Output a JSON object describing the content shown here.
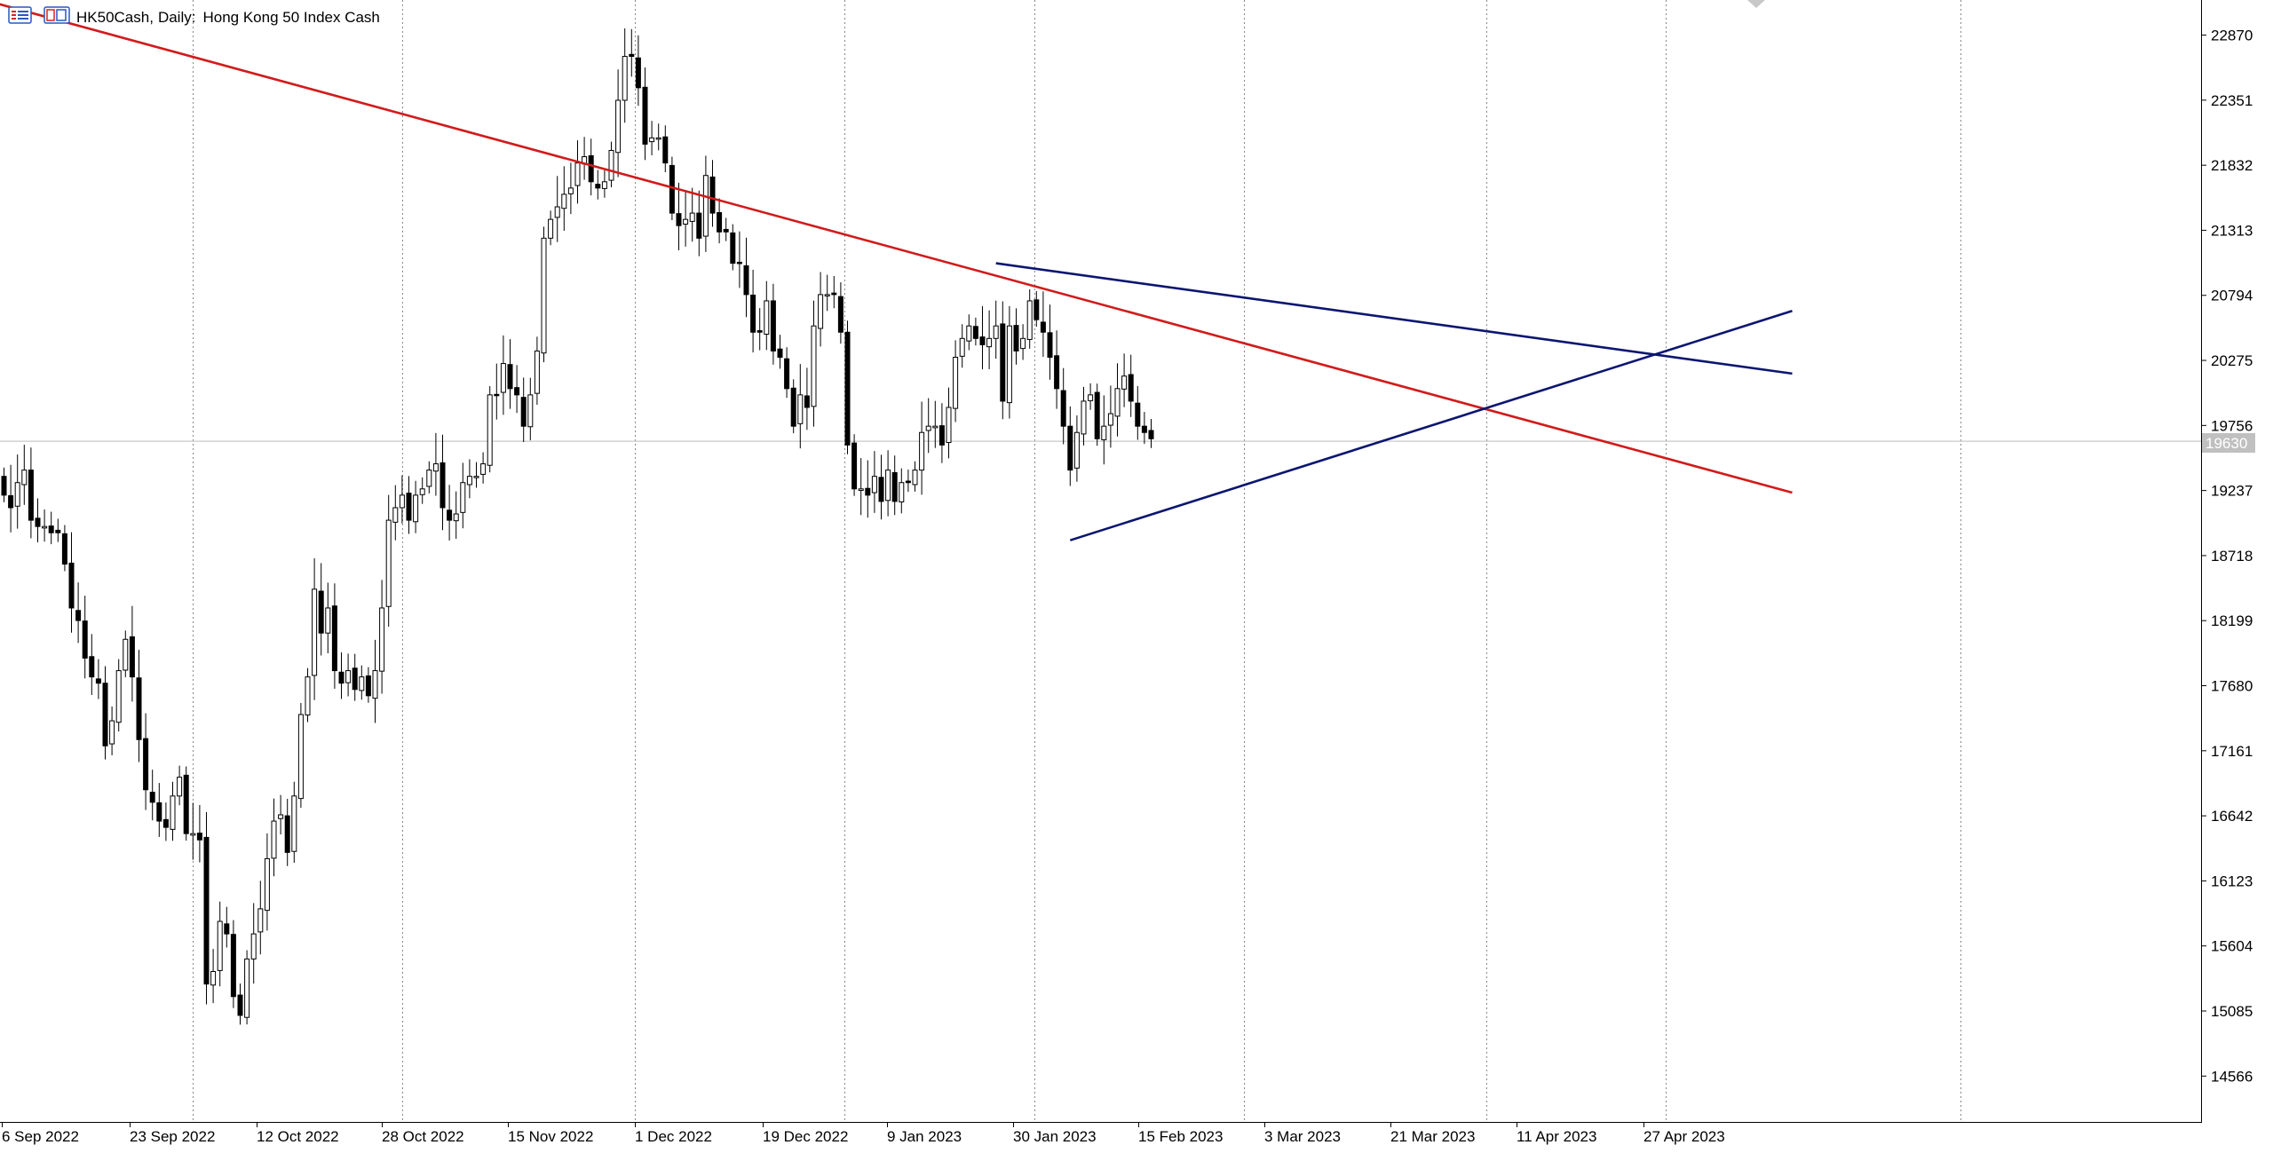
{
  "chart_header": {
    "symbol": "HK50Cash",
    "period": "Daily:",
    "description": "Hong Kong 50 Index Cash"
  },
  "colors": {
    "background": "#ffffff",
    "bull_fill": "#ffffff",
    "bear_fill": "#000000",
    "candle_outline": "#000000",
    "grid": "#888888",
    "red_trendline": "#d11b1b",
    "blue_trendline": "#0b1670",
    "price_line": "#c8c8c8",
    "price_tag_bg": "#c0c0c0",
    "price_tag_text": "#ffffff"
  },
  "current_price_label": "19630",
  "chart_data": {
    "type": "candlestick",
    "title": "HK50Cash, Daily: Hong Kong 50 Index Cash",
    "ylim": [
      14200,
      23150
    ],
    "y_ticks": [
      22870,
      22351,
      21832,
      21313,
      20794,
      20275,
      19756,
      19237,
      18718,
      18199,
      17680,
      17161,
      16642,
      16123,
      15604,
      15085,
      14566
    ],
    "x_labels": [
      "6 Sep 2022",
      "23 Sep 2022",
      "12 Oct 2022",
      "28 Oct 2022",
      "15 Nov 2022",
      "1 Dec 2022",
      "19 Dec 2022",
      "9 Jan 2023",
      "30 Jan 2023",
      "15 Feb 2023",
      "3 Mar 2023",
      "21 Mar 2023",
      "11 Apr 2023",
      "27 Apr 2023"
    ],
    "current_price": 19630,
    "closes": [
      19200,
      19100,
      19300,
      19400,
      19000,
      18950,
      18950,
      18900,
      18900,
      18650,
      18300,
      18200,
      17900,
      17750,
      17700,
      17200,
      17400,
      17800,
      18050,
      17750,
      17250,
      16850,
      16750,
      16600,
      16550,
      16800,
      16950,
      16500,
      16500,
      16450,
      15300,
      15400,
      15800,
      15700,
      15200,
      15050,
      15500,
      15700,
      15900,
      16300,
      16600,
      16650,
      16350,
      16800,
      17450,
      17750,
      18450,
      18100,
      18300,
      17800,
      17700,
      17800,
      17650,
      17750,
      17600,
      17800,
      18300,
      19000,
      19100,
      19200,
      19000,
      19200,
      19250,
      19400,
      19450,
      19100,
      19000,
      19050,
      19300,
      19350,
      19350,
      19450,
      20000,
      20000,
      20250,
      20050,
      20000,
      19750,
      20000,
      20350,
      21250,
      21400,
      21500,
      21600,
      21650,
      21850,
      21900,
      21700,
      21650,
      21700,
      21950,
      22350,
      22700,
      22700,
      22450,
      22000,
      22050,
      22050,
      21850,
      21450,
      21350,
      21400,
      21450,
      21250,
      21750,
      21450,
      21300,
      21300,
      21050,
      21050,
      20800,
      20500,
      20500,
      20750,
      20350,
      20300,
      20050,
      19750,
      20000,
      19900,
      20550,
      20800,
      20800,
      20800,
      20500,
      19600,
      19250,
      19250,
      19200,
      19350,
      19150,
      19400,
      19150,
      19300,
      19300,
      19400,
      19700,
      19750,
      19750,
      19600,
      19900,
      20300,
      20450,
      20550,
      20450,
      20400,
      20450,
      20550,
      19950,
      20550,
      20350,
      20450,
      20750,
      20600,
      20500,
      20300,
      20050,
      19750,
      19400,
      19700,
      19950,
      20000,
      19650,
      19750,
      19850,
      20050,
      20150,
      19950,
      19750,
      19700,
      19650
    ],
    "trendlines": [
      {
        "name": "",
        "color": "red",
        "from": {
          "bar": -5,
          "price": 23180
        },
        "to": {
          "bar": 265,
          "price": 19220
        }
      },
      {
        "name": "",
        "color": "blue",
        "from": {
          "bar": 147,
          "price": 21050
        },
        "to": {
          "bar": 265,
          "price": 20170
        }
      },
      {
        "name": "",
        "color": "blue",
        "from": {
          "bar": 158,
          "price": 18840
        },
        "to": {
          "bar": 265,
          "price": 20670
        }
      }
    ]
  }
}
